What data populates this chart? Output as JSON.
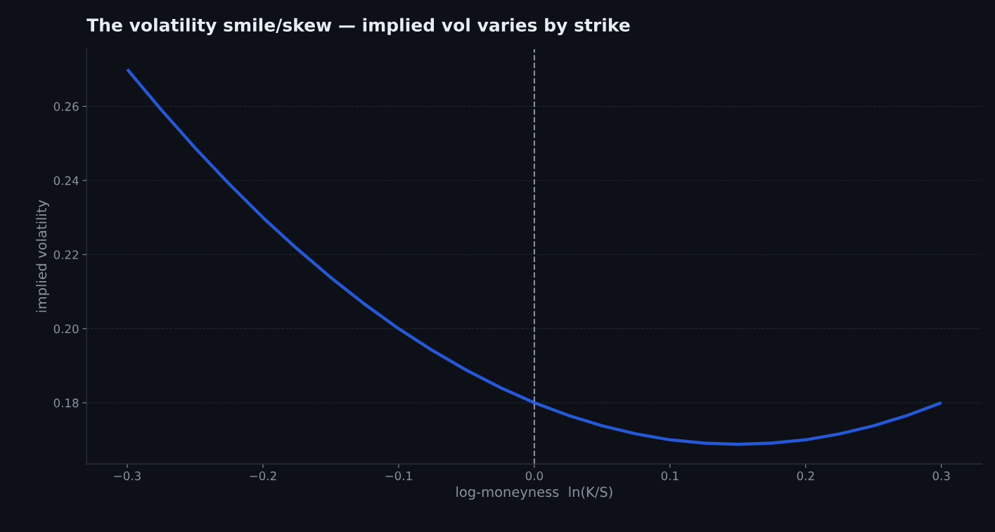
{
  "chart_data": {
    "type": "line",
    "title": "The volatility smile/skew — implied vol varies by strike",
    "xlabel": "log-moneyness  ln(K/S)",
    "ylabel": "implied volatility",
    "x": [
      -0.3,
      -0.275,
      -0.25,
      -0.225,
      -0.2,
      -0.175,
      -0.15,
      -0.125,
      -0.1,
      -0.075,
      -0.05,
      -0.025,
      0,
      0.025,
      0.05,
      0.075,
      0.1,
      0.125,
      0.15,
      0.175,
      0.2,
      0.225,
      0.25,
      0.275,
      0.3
    ],
    "series": [
      {
        "color": "#2458d6",
        "values": [
          0.27,
          0.2591,
          0.2488,
          0.2391,
          0.23,
          0.2216,
          0.2138,
          0.2066,
          0.2,
          0.1941,
          0.1888,
          0.1841,
          0.18,
          0.1766,
          0.1738,
          0.1716,
          0.17,
          0.1691,
          0.1688,
          0.1691,
          0.17,
          0.1716,
          0.1738,
          0.1766,
          0.18
        ]
      }
    ],
    "xlim": [
      -0.33,
      0.33
    ],
    "ylim": [
      0.1635,
      0.2755
    ],
    "xticks": [
      {
        "value": -0.3,
        "label": "−0.3"
      },
      {
        "value": -0.2,
        "label": "−0.2"
      },
      {
        "value": -0.1,
        "label": "−0.1"
      },
      {
        "value": 0,
        "label": "0.0"
      },
      0.1,
      0.2,
      0.3
    ],
    "yticks": [
      {
        "value": 0.18,
        "label": "0.18"
      },
      {
        "value": 0.2,
        "label": "0.20"
      },
      0.22,
      0.24,
      0.26
    ],
    "ref_lines": [
      {
        "axis": "x",
        "value": 0,
        "color": "#8b949e",
        "line_style": "dashed"
      }
    ],
    "grid": "y",
    "legend": false,
    "marker": "none",
    "line_style": "solid"
  }
}
